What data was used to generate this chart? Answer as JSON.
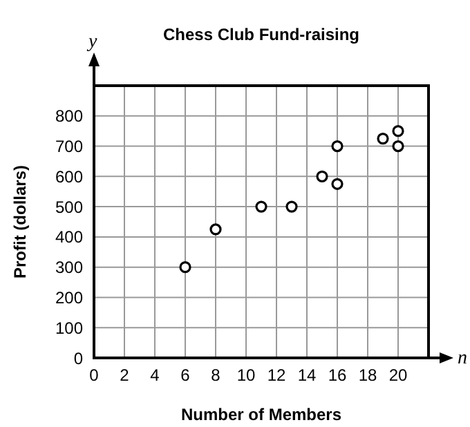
{
  "chart_data": {
    "type": "scatter",
    "title": "Chess Club Fund-raising",
    "xlabel": "Number of Members",
    "ylabel": "Profit (dollars)",
    "annotations": [
      "y",
      "n"
    ],
    "x": [
      6,
      8,
      11,
      13,
      15,
      16,
      16,
      19,
      20,
      20
    ],
    "series": [
      {
        "color": "#000000",
        "values": [
          300,
          425,
          500,
          500,
          600,
          700,
          575,
          725,
          750,
          700
        ]
      }
    ],
    "xlim": [
      0,
      22
    ],
    "xticks": [
      0,
      2,
      4,
      6,
      8,
      10,
      12,
      14,
      16,
      18,
      20
    ],
    "ylim": [
      0,
      900
    ],
    "yticks": [
      0,
      100,
      200,
      300,
      400,
      500,
      600,
      700,
      800
    ],
    "grid": true,
    "marker": "circle"
  }
}
